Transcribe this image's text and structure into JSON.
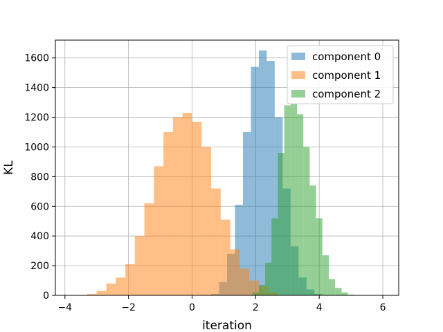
{
  "chart_data": {
    "type": "bar",
    "subtype": "overlapping-histogram",
    "title": "",
    "xlabel": "iteration",
    "ylabel": "KL",
    "xlim": [
      -4.3,
      6.5
    ],
    "ylim": [
      0,
      1720
    ],
    "xticks": [
      -4,
      -2,
      0,
      2,
      4,
      6
    ],
    "xtick_labels": [
      "−4",
      "−2",
      "0",
      "2",
      "4",
      "6"
    ],
    "yticks": [
      0,
      200,
      400,
      600,
      800,
      1000,
      1200,
      1400,
      1600
    ],
    "ytick_labels": [
      "0",
      "200",
      "400",
      "600",
      "800",
      "1000",
      "1200",
      "1400",
      "1600"
    ],
    "grid": true,
    "legend_position": "top-right",
    "series": [
      {
        "name": "component 0",
        "color": "#1f77b4",
        "opacity": 0.5,
        "bin_left_edges": [
          0.6,
          0.85,
          1.1,
          1.35,
          1.6,
          1.85,
          2.1,
          2.35,
          2.6,
          2.85,
          3.1,
          3.35,
          3.6,
          3.85
        ],
        "bin_width": 0.25,
        "counts": [
          10,
          90,
          280,
          610,
          1100,
          1540,
          1650,
          1580,
          1200,
          720,
          330,
          120,
          40,
          10
        ]
      },
      {
        "name": "component 1",
        "color": "#ff7f0e",
        "opacity": 0.5,
        "bin_left_edges": [
          -3.3,
          -3.0,
          -2.7,
          -2.4,
          -2.1,
          -1.8,
          -1.5,
          -1.2,
          -0.9,
          -0.6,
          -0.3,
          0.0,
          0.3,
          0.6,
          0.9,
          1.2,
          1.5,
          1.8,
          2.1,
          2.4
        ],
        "bin_width": 0.3,
        "counts": [
          10,
          30,
          80,
          120,
          210,
          400,
          620,
          870,
          1100,
          1200,
          1230,
          1170,
          1000,
          720,
          510,
          310,
          180,
          100,
          60,
          20
        ]
      },
      {
        "name": "component 2",
        "color": "#2ca02c",
        "opacity": 0.5,
        "bin_left_edges": [
          1.9,
          2.1,
          2.3,
          2.5,
          2.7,
          2.9,
          3.1,
          3.3,
          3.5,
          3.7,
          3.9,
          4.1,
          4.3,
          4.5,
          4.7,
          4.9
        ],
        "bin_width": 0.2,
        "counts": [
          20,
          70,
          220,
          520,
          960,
          1280,
          1290,
          1220,
          1000,
          740,
          520,
          270,
          110,
          50,
          20,
          5
        ]
      }
    ]
  }
}
